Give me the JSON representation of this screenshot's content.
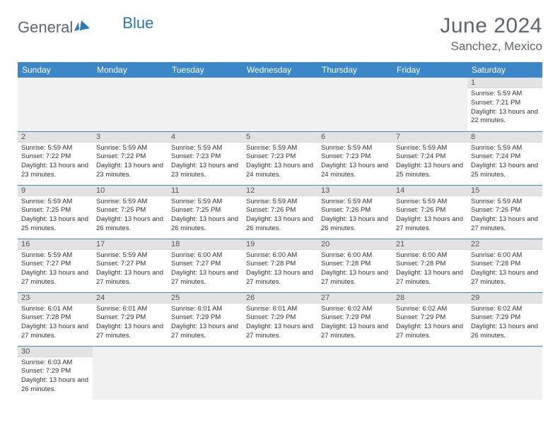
{
  "logo": {
    "general": "General",
    "blue": "Blue"
  },
  "title": "June 2024",
  "location": "Sanchez, Mexico",
  "colors": {
    "header_bg": "#3b87c8",
    "header_fg": "#ffffff",
    "daynum_bg": "#e3e3e3",
    "row_border": "#3b87c8",
    "title_color": "#5b6670",
    "logo_blue": "#2a77bb",
    "logo_gray": "#5d6870"
  },
  "weekdays": [
    "Sunday",
    "Monday",
    "Tuesday",
    "Wednesday",
    "Thursday",
    "Friday",
    "Saturday"
  ],
  "weeks": [
    [
      null,
      null,
      null,
      null,
      null,
      null,
      {
        "n": "1",
        "sr": "5:59 AM",
        "ss": "7:21 PM",
        "dl": "13 hours and 22 minutes."
      }
    ],
    [
      {
        "n": "2",
        "sr": "5:59 AM",
        "ss": "7:22 PM",
        "dl": "13 hours and 23 minutes."
      },
      {
        "n": "3",
        "sr": "5:59 AM",
        "ss": "7:22 PM",
        "dl": "13 hours and 23 minutes."
      },
      {
        "n": "4",
        "sr": "5:59 AM",
        "ss": "7:23 PM",
        "dl": "13 hours and 23 minutes."
      },
      {
        "n": "5",
        "sr": "5:59 AM",
        "ss": "7:23 PM",
        "dl": "13 hours and 24 minutes."
      },
      {
        "n": "6",
        "sr": "5:59 AM",
        "ss": "7:23 PM",
        "dl": "13 hours and 24 minutes."
      },
      {
        "n": "7",
        "sr": "5:59 AM",
        "ss": "7:24 PM",
        "dl": "13 hours and 25 minutes."
      },
      {
        "n": "8",
        "sr": "5:59 AM",
        "ss": "7:24 PM",
        "dl": "13 hours and 25 minutes."
      }
    ],
    [
      {
        "n": "9",
        "sr": "5:59 AM",
        "ss": "7:25 PM",
        "dl": "13 hours and 25 minutes."
      },
      {
        "n": "10",
        "sr": "5:59 AM",
        "ss": "7:25 PM",
        "dl": "13 hours and 26 minutes."
      },
      {
        "n": "11",
        "sr": "5:59 AM",
        "ss": "7:25 PM",
        "dl": "13 hours and 26 minutes."
      },
      {
        "n": "12",
        "sr": "5:59 AM",
        "ss": "7:26 PM",
        "dl": "13 hours and 26 minutes."
      },
      {
        "n": "13",
        "sr": "5:59 AM",
        "ss": "7:26 PM",
        "dl": "13 hours and 26 minutes."
      },
      {
        "n": "14",
        "sr": "5:59 AM",
        "ss": "7:26 PM",
        "dl": "13 hours and 27 minutes."
      },
      {
        "n": "15",
        "sr": "5:59 AM",
        "ss": "7:26 PM",
        "dl": "13 hours and 27 minutes."
      }
    ],
    [
      {
        "n": "16",
        "sr": "5:59 AM",
        "ss": "7:27 PM",
        "dl": "13 hours and 27 minutes."
      },
      {
        "n": "17",
        "sr": "5:59 AM",
        "ss": "7:27 PM",
        "dl": "13 hours and 27 minutes."
      },
      {
        "n": "18",
        "sr": "6:00 AM",
        "ss": "7:27 PM",
        "dl": "13 hours and 27 minutes."
      },
      {
        "n": "19",
        "sr": "6:00 AM",
        "ss": "7:28 PM",
        "dl": "13 hours and 27 minutes."
      },
      {
        "n": "20",
        "sr": "6:00 AM",
        "ss": "7:28 PM",
        "dl": "13 hours and 27 minutes."
      },
      {
        "n": "21",
        "sr": "6:00 AM",
        "ss": "7:28 PM",
        "dl": "13 hours and 27 minutes."
      },
      {
        "n": "22",
        "sr": "6:00 AM",
        "ss": "7:28 PM",
        "dl": "13 hours and 27 minutes."
      }
    ],
    [
      {
        "n": "23",
        "sr": "6:01 AM",
        "ss": "7:28 PM",
        "dl": "13 hours and 27 minutes."
      },
      {
        "n": "24",
        "sr": "6:01 AM",
        "ss": "7:29 PM",
        "dl": "13 hours and 27 minutes."
      },
      {
        "n": "25",
        "sr": "6:01 AM",
        "ss": "7:29 PM",
        "dl": "13 hours and 27 minutes."
      },
      {
        "n": "26",
        "sr": "6:01 AM",
        "ss": "7:29 PM",
        "dl": "13 hours and 27 minutes."
      },
      {
        "n": "27",
        "sr": "6:02 AM",
        "ss": "7:29 PM",
        "dl": "13 hours and 27 minutes."
      },
      {
        "n": "28",
        "sr": "6:02 AM",
        "ss": "7:29 PM",
        "dl": "13 hours and 27 minutes."
      },
      {
        "n": "29",
        "sr": "6:02 AM",
        "ss": "7:29 PM",
        "dl": "13 hours and 26 minutes."
      }
    ],
    [
      {
        "n": "30",
        "sr": "6:03 AM",
        "ss": "7:29 PM",
        "dl": "13 hours and 26 minutes."
      },
      null,
      null,
      null,
      null,
      null,
      null
    ]
  ],
  "labels": {
    "sunrise": "Sunrise:",
    "sunset": "Sunset:",
    "daylight": "Daylight:"
  }
}
